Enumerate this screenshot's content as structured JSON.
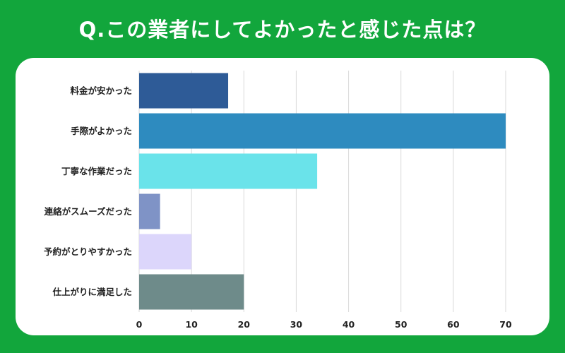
{
  "title": "Q.この業者にしてよかったと感じた点は？",
  "colors": {
    "background": "#12a63c",
    "card": "#ffffff",
    "grid": "#d9d9d9"
  },
  "chart_data": {
    "type": "bar",
    "orientation": "horizontal",
    "title": "Q.この業者にしてよかったと感じた点は？",
    "categories": [
      "料金が安かった",
      "手際がよかった",
      "丁寧な作業だった",
      "連絡がスムーズだった",
      "予約がとりやすかった",
      "仕上がりに満足した"
    ],
    "values": [
      17,
      70,
      34,
      4,
      10,
      20
    ],
    "colors": [
      "#2e5b97",
      "#2e8bbf",
      "#6ae3ea",
      "#7f93c6",
      "#dcd6fb",
      "#6e8b8a"
    ],
    "xlim": [
      0,
      70
    ],
    "xticks": [
      0,
      10,
      20,
      30,
      40,
      50,
      60,
      70
    ],
    "xlabel": "",
    "ylabel": "",
    "grid": true
  }
}
